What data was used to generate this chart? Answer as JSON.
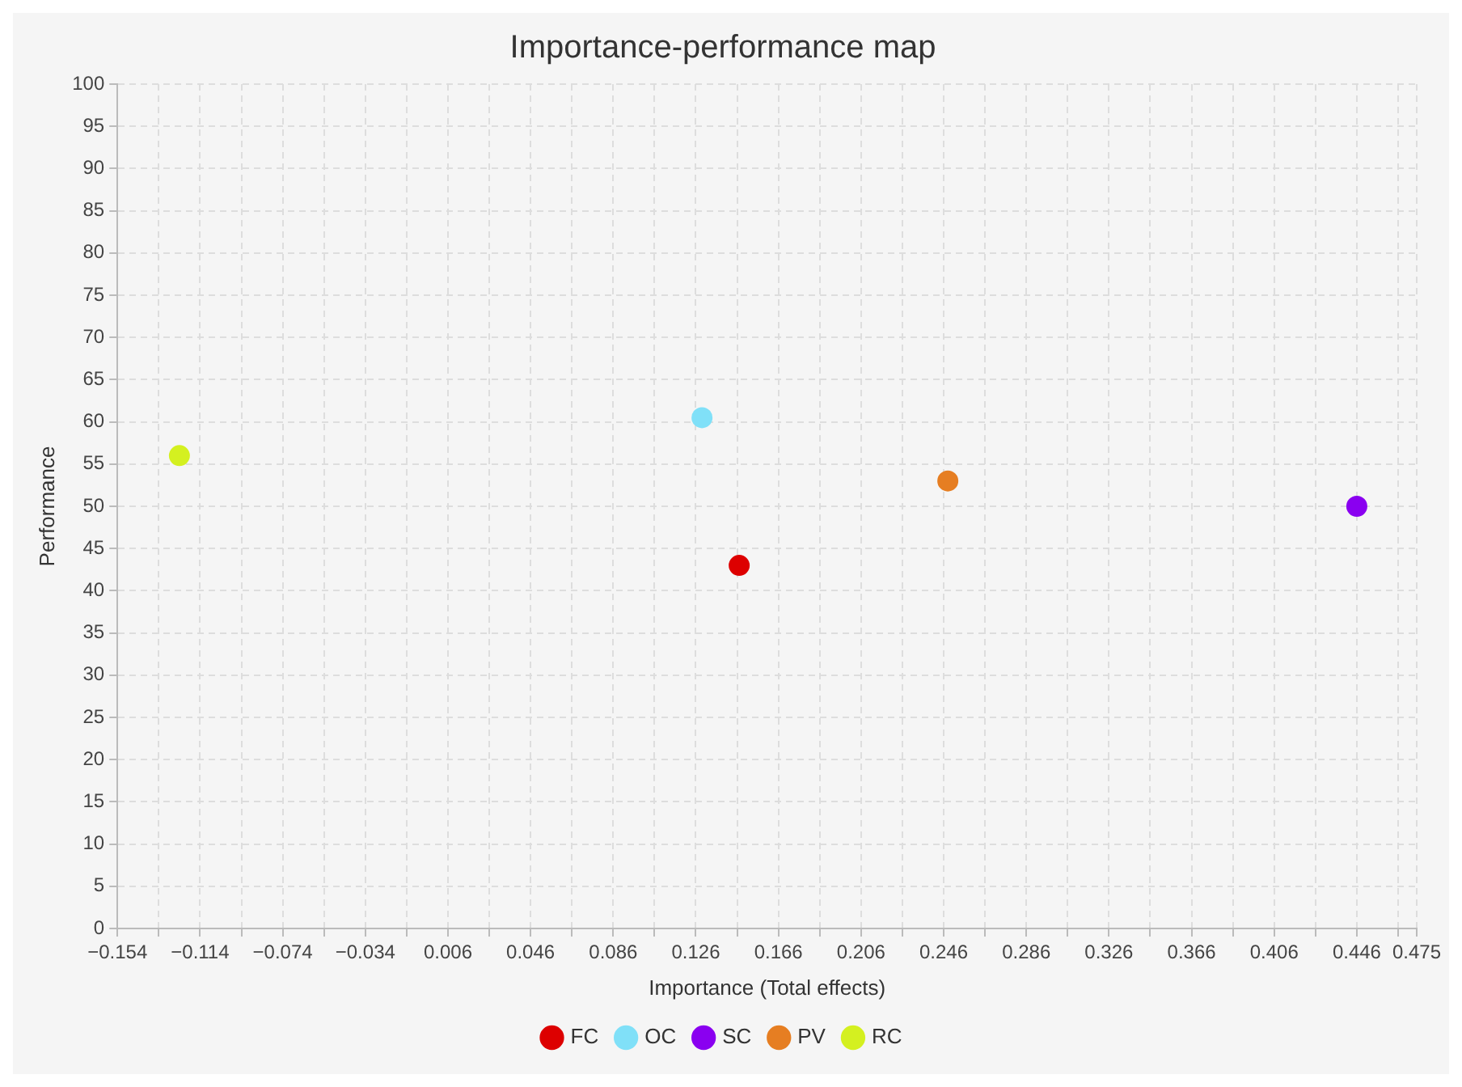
{
  "chart_data": {
    "type": "scatter",
    "title": "Importance-performance map",
    "xlabel": "Importance (Total effects)",
    "ylabel": "Performance",
    "series": [
      {
        "name": "FC",
        "color": "#dd0000",
        "x": [
          0.147
        ],
        "values": [
          43
        ]
      },
      {
        "name": "OC",
        "color": "#80e0f8",
        "x": [
          0.129
        ],
        "values": [
          60.5
        ]
      },
      {
        "name": "SC",
        "color": "#8a00f0",
        "x": [
          0.446
        ],
        "values": [
          50
        ]
      },
      {
        "name": "PV",
        "color": "#e67e22",
        "x": [
          0.248
        ],
        "values": [
          53
        ]
      },
      {
        "name": "RC",
        "color": "#d4f020",
        "x": [
          -0.124
        ],
        "values": [
          56
        ]
      }
    ],
    "xlim": [
      -0.154,
      0.475
    ],
    "xticks": [
      -0.154,
      {
        "value": -0.134,
        "label": null
      },
      -0.114,
      {
        "value": -0.094,
        "label": null
      },
      -0.074,
      {
        "value": -0.054,
        "label": null
      },
      -0.034,
      {
        "value": -0.014,
        "label": null
      },
      0.006,
      {
        "value": 0.026,
        "label": null
      },
      0.046,
      {
        "value": 0.066,
        "label": null
      },
      0.086,
      {
        "value": 0.106,
        "label": null
      },
      0.126,
      {
        "value": 0.146,
        "label": null
      },
      0.166,
      {
        "value": 0.186,
        "label": null
      },
      0.206,
      {
        "value": 0.226,
        "label": null
      },
      0.246,
      {
        "value": 0.266,
        "label": null
      },
      0.286,
      {
        "value": 0.306,
        "label": null
      },
      0.326,
      {
        "value": 0.346,
        "label": null
      },
      0.366,
      {
        "value": 0.386,
        "label": null
      },
      0.406,
      {
        "value": 0.426,
        "label": null
      },
      0.446,
      {
        "value": 0.466,
        "label": null
      },
      0.475
    ],
    "ylim": [
      0,
      100
    ],
    "yticks": [
      0,
      5,
      10,
      15,
      20,
      25,
      30,
      35,
      40,
      45,
      50,
      55,
      60,
      65,
      70,
      75,
      80,
      85,
      90,
      95,
      100
    ],
    "grid": true,
    "legend": "bottom",
    "marker": "circle"
  }
}
